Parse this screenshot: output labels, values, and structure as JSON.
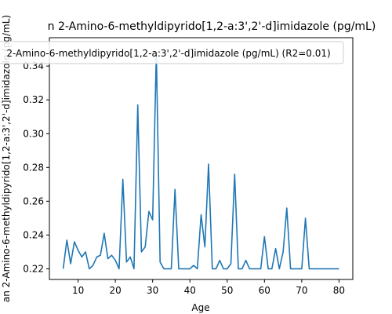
{
  "chart_data": {
    "type": "line",
    "title": "n 2-Amino-6-methyldipyrido[1,2-a:3',2'-d]imidazole (pg/mL)",
    "xlabel": "Age",
    "ylabel": "an 2-Amino-6-methyldipyrido[1,2-a:3',2'-d]imidazole (pg/mL)",
    "xlim": [
      2.3,
      83.7
    ],
    "ylim": [
      0.2137,
      0.3568
    ],
    "xticks": [
      10,
      20,
      30,
      40,
      50,
      60,
      70,
      80
    ],
    "yticks": [
      0.22,
      0.24,
      0.26,
      0.28,
      0.3,
      0.32,
      0.34
    ],
    "ytick_labels": [
      "0.22",
      "0.24",
      "0.26",
      "0.28",
      "0.30",
      "0.32",
      "0.34"
    ],
    "legend": {
      "position": "top",
      "entries": [
        "2-Amino-6-methyldipyrido[1,2-a:3',2'-d]imidazole (pg/mL) (R2=0.01)"
      ]
    },
    "grid": false,
    "series": [
      {
        "name": "2-Amino-6-methyldipyrido[1,2-a:3',2'-d]imidazole (pg/mL) (R2=0.01)",
        "color": "#1f77b4",
        "x": [
          6,
          7,
          8,
          9,
          10,
          11,
          12,
          13,
          14,
          15,
          16,
          17,
          18,
          19,
          20,
          21,
          22,
          23,
          24,
          25,
          26,
          27,
          28,
          29,
          30,
          31,
          32,
          33,
          34,
          35,
          36,
          37,
          38,
          39,
          40,
          41,
          42,
          43,
          44,
          45,
          46,
          47,
          48,
          49,
          50,
          51,
          52,
          53,
          54,
          55,
          56,
          57,
          58,
          59,
          60,
          61,
          62,
          63,
          64,
          65,
          66,
          67,
          68,
          69,
          70,
          71,
          72,
          73,
          74,
          75,
          76,
          77,
          78,
          79,
          80
        ],
        "y": [
          0.22,
          0.237,
          0.223,
          0.236,
          0.231,
          0.227,
          0.23,
          0.22,
          0.222,
          0.227,
          0.228,
          0.241,
          0.226,
          0.228,
          0.225,
          0.22,
          0.273,
          0.224,
          0.227,
          0.22,
          0.317,
          0.23,
          0.233,
          0.254,
          0.249,
          0.348,
          0.224,
          0.22,
          0.22,
          0.22,
          0.267,
          0.22,
          0.22,
          0.22,
          0.22,
          0.222,
          0.22,
          0.252,
          0.233,
          0.282,
          0.22,
          0.22,
          0.225,
          0.22,
          0.22,
          0.223,
          0.276,
          0.22,
          0.22,
          0.225,
          0.22,
          0.22,
          0.22,
          0.22,
          0.239,
          0.22,
          0.22,
          0.232,
          0.22,
          0.23,
          0.256,
          0.22,
          0.22,
          0.22,
          0.22,
          0.25,
          0.22,
          0.22,
          0.22,
          0.22,
          0.22,
          0.22,
          0.22,
          0.22,
          0.22
        ]
      }
    ]
  }
}
